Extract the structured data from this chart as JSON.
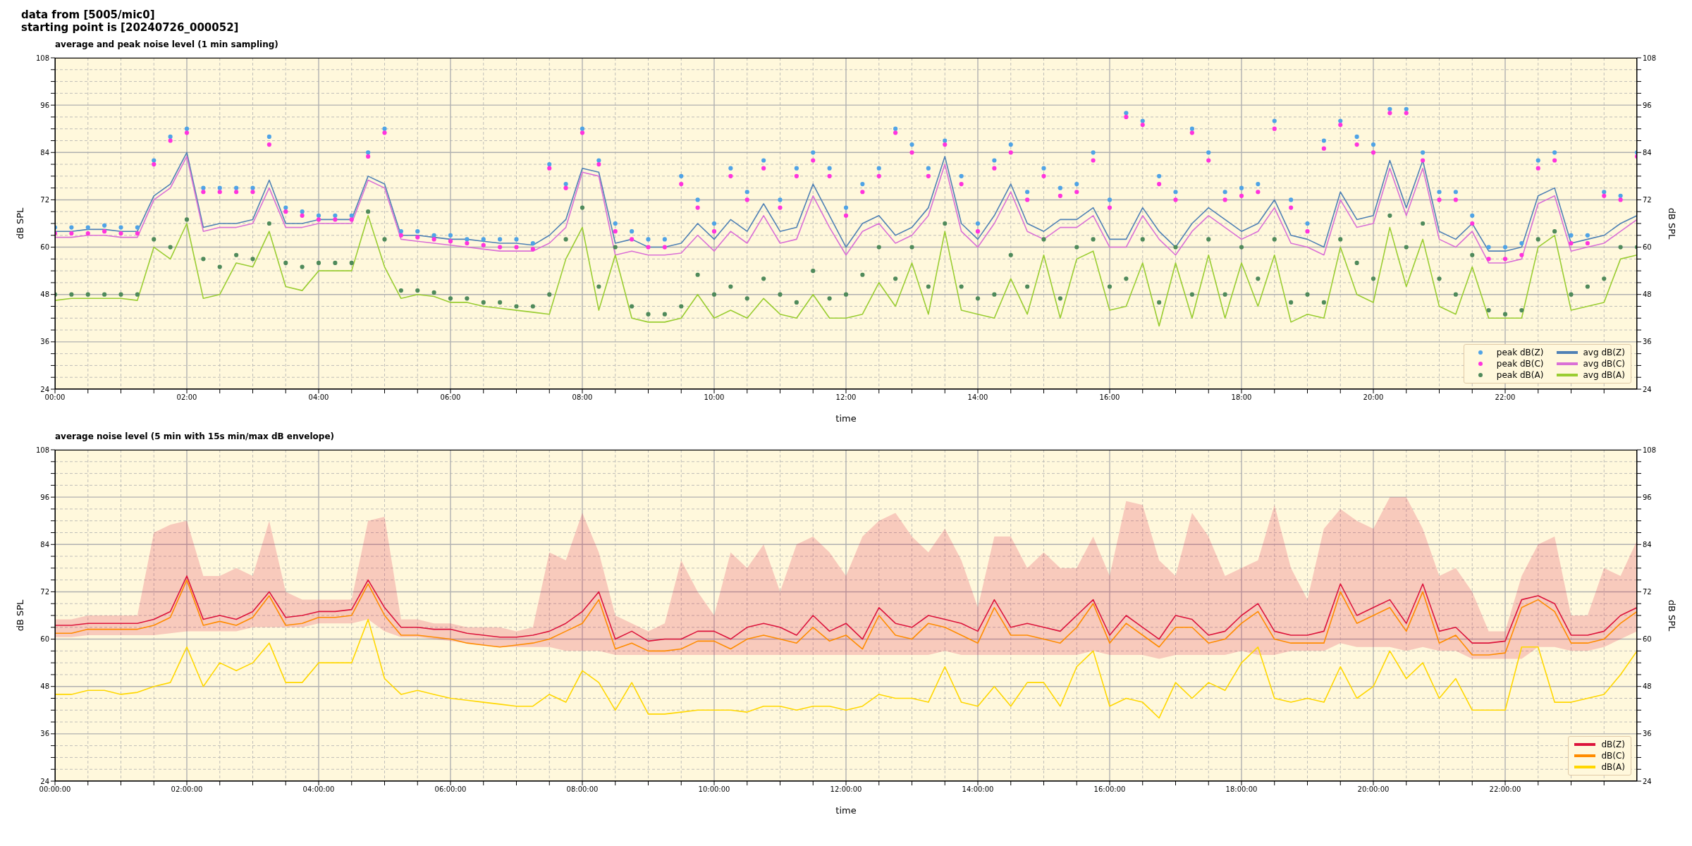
{
  "chart_data": [
    {
      "type": "line",
      "title": "average and peak noise level (1 min sampling)",
      "annotations": [
        "data from [5005/mic0]",
        "starting point is [20240726_000052]"
      ],
      "xlabel": "time",
      "ylabel": "dB SPL",
      "y2label": "dB SPL",
      "xlim": [
        0,
        24
      ],
      "ylim": [
        24,
        108
      ],
      "y2lim": [
        24,
        108
      ],
      "xticks": [
        {
          "value": 0,
          "label": "00:00"
        },
        {
          "value": 0.5,
          "label": null
        },
        {
          "value": 1,
          "label": null
        },
        {
          "value": 1.5,
          "label": null
        },
        {
          "value": 2,
          "label": "02:00"
        },
        {
          "value": 2.5,
          "label": null
        },
        {
          "value": 3,
          "label": null
        },
        {
          "value": 3.5,
          "label": null
        },
        {
          "value": 4,
          "label": "04:00"
        },
        {
          "value": 4.5,
          "label": null
        },
        {
          "value": 5,
          "label": null
        },
        {
          "value": 5.5,
          "label": null
        },
        {
          "value": 6,
          "label": "06:00"
        },
        {
          "value": 6.5,
          "label": null
        },
        {
          "value": 7,
          "label": null
        },
        {
          "value": 7.5,
          "label": null
        },
        {
          "value": 8,
          "label": "08:00"
        },
        {
          "value": 8.5,
          "label": null
        },
        {
          "value": 9,
          "label": null
        },
        {
          "value": 9.5,
          "label": null
        },
        {
          "value": 10,
          "label": "10:00"
        },
        {
          "value": 10.5,
          "label": null
        },
        {
          "value": 11,
          "label": null
        },
        {
          "value": 11.5,
          "label": null
        },
        {
          "value": 12,
          "label": "12:00"
        },
        {
          "value": 12.5,
          "label": null
        },
        {
          "value": 13,
          "label": null
        },
        {
          "value": 13.5,
          "label": null
        },
        {
          "value": 14,
          "label": "14:00"
        },
        {
          "value": 14.5,
          "label": null
        },
        {
          "value": 15,
          "label": null
        },
        {
          "value": 15.5,
          "label": null
        },
        {
          "value": 16,
          "label": "16:00"
        },
        {
          "value": 16.5,
          "label": null
        },
        {
          "value": 17,
          "label": null
        },
        {
          "value": 17.5,
          "label": null
        },
        {
          "value": 18,
          "label": "18:00"
        },
        {
          "value": 18.5,
          "label": null
        },
        {
          "value": 19,
          "label": null
        },
        {
          "value": 19.5,
          "label": null
        },
        {
          "value": 20,
          "label": "20:00"
        },
        {
          "value": 20.5,
          "label": null
        },
        {
          "value": 21,
          "label": null
        },
        {
          "value": 21.5,
          "label": null
        },
        {
          "value": 22,
          "label": "22:00"
        },
        {
          "value": 22.5,
          "label": null
        },
        {
          "value": 23,
          "label": null
        },
        {
          "value": 23.5,
          "label": null
        }
      ],
      "yticks": [
        24,
        {
          "value": 27,
          "label": null
        },
        {
          "value": 30,
          "label": null
        },
        {
          "value": 33,
          "label": null
        },
        36,
        {
          "value": 39,
          "label": null
        },
        {
          "value": 42,
          "label": null
        },
        {
          "value": 45,
          "label": null
        },
        48,
        {
          "value": 51,
          "label": null
        },
        {
          "value": 54,
          "label": null
        },
        {
          "value": 57,
          "label": null
        },
        60,
        {
          "value": 63,
          "label": null
        },
        {
          "value": 66,
          "label": null
        },
        {
          "value": 69,
          "label": null
        },
        72,
        {
          "value": 75,
          "label": null
        },
        {
          "value": 78,
          "label": null
        },
        {
          "value": 81,
          "label": null
        },
        84,
        {
          "value": 87,
          "label": null
        },
        {
          "value": 90,
          "label": null
        },
        {
          "value": 93,
          "label": null
        },
        96,
        {
          "value": 99,
          "label": null
        },
        {
          "value": 102,
          "label": null
        },
        {
          "value": 105,
          "label": null
        },
        108
      ],
      "y2ticks": [
        24,
        {
          "value": 27,
          "label": null
        },
        {
          "value": 30,
          "label": null
        },
        {
          "value": 33,
          "label": null
        },
        36,
        {
          "value": 39,
          "label": null
        },
        {
          "value": 42,
          "label": null
        },
        {
          "value": 45,
          "label": null
        },
        48,
        {
          "value": 51,
          "label": null
        },
        {
          "value": 54,
          "label": null
        },
        {
          "value": 57,
          "label": null
        },
        60,
        {
          "value": 63,
          "label": null
        },
        {
          "value": 66,
          "label": null
        },
        {
          "value": 69,
          "label": null
        },
        72,
        {
          "value": 75,
          "label": null
        },
        {
          "value": 78,
          "label": null
        },
        {
          "value": 81,
          "label": null
        },
        84,
        {
          "value": 87,
          "label": null
        },
        {
          "value": 90,
          "label": null
        },
        {
          "value": 93,
          "label": null
        },
        96,
        {
          "value": 99,
          "label": null
        },
        {
          "value": 102,
          "label": null
        },
        {
          "value": 105,
          "label": null
        },
        108
      ],
      "grid": true,
      "legend": "bottom right",
      "x": [
        0,
        0.25,
        0.5,
        0.75,
        1,
        1.25,
        1.5,
        1.75,
        2,
        2.25,
        2.5,
        2.75,
        3,
        3.25,
        3.5,
        3.75,
        4,
        4.25,
        4.5,
        4.75,
        5,
        5.25,
        5.5,
        5.75,
        6,
        6.25,
        6.5,
        6.75,
        7,
        7.25,
        7.5,
        7.75,
        8,
        8.25,
        8.5,
        8.75,
        9,
        9.25,
        9.5,
        9.75,
        10,
        10.25,
        10.5,
        10.75,
        11,
        11.25,
        11.5,
        11.75,
        12,
        12.25,
        12.5,
        12.75,
        13,
        13.25,
        13.5,
        13.75,
        14,
        14.25,
        14.5,
        14.75,
        15,
        15.25,
        15.5,
        15.75,
        16,
        16.25,
        16.5,
        16.75,
        17,
        17.25,
        17.5,
        17.75,
        18,
        18.25,
        18.5,
        18.75,
        19,
        19.25,
        19.5,
        19.75,
        20,
        20.25,
        20.5,
        20.75,
        21,
        21.25,
        21.5,
        21.75,
        22,
        22.25,
        22.5,
        22.75,
        23,
        23.25,
        23.5,
        23.75,
        24
      ],
      "series": [
        {
          "name": "peak dB(Z)",
          "type": "scatter",
          "marker": "circle",
          "color": "#4fa3e6",
          "values": [
            65,
            65,
            65,
            65.5,
            65,
            65,
            82,
            88,
            90,
            75,
            75,
            75,
            75,
            88,
            70,
            69,
            68,
            68,
            68,
            84,
            90,
            64,
            64,
            63,
            63,
            62,
            62,
            62,
            62,
            61,
            81,
            76,
            90,
            82,
            66,
            64,
            62,
            62,
            78,
            72,
            66,
            80,
            74,
            82,
            72,
            80,
            84,
            80,
            70,
            76,
            80,
            90,
            86,
            80,
            87,
            78,
            66,
            82,
            86,
            74,
            80,
            75,
            76,
            84,
            72,
            94,
            92,
            78,
            74,
            90,
            84,
            74,
            75,
            76,
            92,
            72,
            66,
            87,
            92,
            88,
            86,
            95,
            95,
            84,
            74,
            74,
            68,
            60,
            60,
            61,
            82,
            84,
            63,
            63,
            74,
            73,
            84
          ]
        },
        {
          "name": "peak dB(C)",
          "type": "scatter",
          "marker": "circle",
          "color": "#ff33dd",
          "values": [
            63.5,
            63.5,
            63.5,
            64,
            63.5,
            63.5,
            81,
            87,
            89,
            74,
            74,
            74,
            74,
            86,
            69,
            68,
            67,
            67,
            67,
            83,
            89,
            63,
            62.5,
            62,
            61.5,
            61,
            60.5,
            60,
            60,
            59.5,
            80,
            75,
            89,
            81,
            64,
            62,
            60,
            60,
            76,
            70,
            64,
            78,
            72,
            80,
            70,
            78,
            82,
            78,
            68,
            74,
            78,
            89,
            84,
            78,
            86,
            76,
            64,
            80,
            84,
            72,
            78,
            73,
            74,
            82,
            70,
            93,
            91,
            76,
            72,
            89,
            82,
            72,
            73,
            74,
            90,
            70,
            64,
            85,
            91,
            86,
            84,
            94,
            94,
            82,
            72,
            72,
            66,
            57,
            57,
            58,
            80,
            82,
            61,
            61,
            73,
            72,
            83
          ]
        },
        {
          "name": "peak dB(A)",
          "type": "scatter",
          "marker": "circle",
          "color": "#4f8a5b",
          "values": [
            48,
            48,
            48,
            48,
            48,
            48,
            62,
            60,
            67,
            57,
            55,
            58,
            57,
            66,
            56,
            55,
            56,
            56,
            56,
            69,
            62,
            49,
            49,
            48.5,
            47,
            47,
            46,
            46,
            45,
            45,
            48,
            62,
            70,
            50,
            60,
            45,
            43,
            43,
            45,
            53,
            48,
            50,
            47,
            52,
            48,
            46,
            54,
            47,
            48,
            53,
            60,
            52,
            60,
            50,
            66,
            50,
            47,
            48,
            58,
            50,
            62,
            47,
            60,
            62,
            50,
            52,
            62,
            46,
            60,
            48,
            62,
            48,
            60,
            52,
            62,
            46,
            48,
            46,
            62,
            56,
            52,
            68,
            60,
            66,
            52,
            48,
            58,
            44,
            43,
            44,
            62,
            64,
            48,
            50,
            52,
            60,
            60
          ]
        },
        {
          "name": "avg dB(Z)",
          "color": "#4f81b5",
          "values": [
            64,
            64,
            64.5,
            64.5,
            64,
            64,
            73,
            76,
            84,
            65,
            66,
            66,
            67,
            77,
            66,
            66,
            67,
            67,
            67,
            78,
            76,
            63,
            63,
            62.5,
            62,
            62,
            61.5,
            61,
            61,
            60.5,
            63,
            67,
            80,
            79,
            61,
            62,
            60,
            60,
            61,
            66,
            62,
            67,
            64,
            71,
            64,
            65,
            76,
            68,
            60,
            66,
            68,
            63,
            65,
            70,
            83,
            66,
            62,
            68,
            76,
            66,
            64,
            67,
            67,
            70,
            62,
            62,
            70,
            64,
            60,
            66,
            70,
            67,
            64,
            66,
            72,
            63,
            62,
            60,
            74,
            67,
            68,
            82,
            70,
            82,
            64,
            62,
            66,
            59,
            59,
            60,
            73,
            75,
            61,
            62,
            63,
            66,
            68
          ]
        },
        {
          "name": "avg dB(C)",
          "color": "#da70d6",
          "values": [
            62.5,
            62.5,
            63,
            63,
            62.5,
            62.5,
            72,
            75,
            83,
            64,
            65,
            65,
            66,
            75,
            65,
            65,
            66,
            66,
            66,
            77,
            75,
            62,
            61.5,
            61,
            60.5,
            60,
            59.5,
            59,
            59,
            59,
            61,
            65,
            79,
            78,
            58,
            59,
            58,
            58,
            58.5,
            63,
            59,
            64,
            61,
            68,
            61,
            62,
            73,
            65,
            58,
            64,
            66,
            61,
            63,
            68,
            81,
            64,
            60,
            66,
            74,
            64,
            62,
            65,
            65,
            68,
            60,
            60,
            68,
            62,
            58,
            64,
            68,
            65,
            62,
            64,
            70,
            61,
            60,
            58,
            72,
            65,
            66,
            80,
            68,
            80,
            62,
            60,
            64,
            56,
            56,
            57,
            71,
            73,
            59,
            60,
            61,
            64,
            67
          ]
        },
        {
          "name": "avg dB(A)",
          "color": "#9acd32",
          "values": [
            46.5,
            47,
            47,
            47,
            47,
            46.5,
            60,
            57,
            66,
            47,
            48,
            56,
            55,
            64,
            50,
            49,
            54,
            54,
            54,
            68,
            55,
            47,
            48,
            47.5,
            46,
            46,
            45,
            44.5,
            44,
            43.5,
            43,
            57,
            65,
            44,
            58,
            42,
            41,
            41,
            42,
            48,
            42,
            44,
            42,
            47,
            43,
            42,
            48,
            42,
            42,
            43,
            51,
            45,
            56,
            43,
            64,
            44,
            43,
            42,
            52,
            43,
            58,
            42,
            57,
            59,
            44,
            45,
            56,
            40,
            56,
            42,
            58,
            42,
            56,
            45,
            58,
            41,
            43,
            42,
            60,
            48,
            46,
            65,
            50,
            62,
            45,
            43,
            55,
            42,
            42,
            42,
            60,
            63,
            44,
            45,
            46,
            57,
            58
          ]
        }
      ]
    },
    {
      "type": "line",
      "title": "average noise level (5 min with 15s min/max dB envelope)",
      "xlabel": "time",
      "ylabel": "dB SPL",
      "y2label": "dB SPL",
      "xlim": [
        0,
        24
      ],
      "ylim": [
        24,
        108
      ],
      "y2lim": [
        24,
        108
      ],
      "xticks": [
        {
          "value": 0,
          "label": "00:00:00"
        },
        {
          "value": 0.5,
          "label": null
        },
        {
          "value": 1,
          "label": null
        },
        {
          "value": 1.5,
          "label": null
        },
        {
          "value": 2,
          "label": "02:00:00"
        },
        {
          "value": 2.5,
          "label": null
        },
        {
          "value": 3,
          "label": null
        },
        {
          "value": 3.5,
          "label": null
        },
        {
          "value": 4,
          "label": "04:00:00"
        },
        {
          "value": 4.5,
          "label": null
        },
        {
          "value": 5,
          "label": null
        },
        {
          "value": 5.5,
          "label": null
        },
        {
          "value": 6,
          "label": "06:00:00"
        },
        {
          "value": 6.5,
          "label": null
        },
        {
          "value": 7,
          "label": null
        },
        {
          "value": 7.5,
          "label": null
        },
        {
          "value": 8,
          "label": "08:00:00"
        },
        {
          "value": 8.5,
          "label": null
        },
        {
          "value": 9,
          "label": null
        },
        {
          "value": 9.5,
          "label": null
        },
        {
          "value": 10,
          "label": "10:00:00"
        },
        {
          "value": 10.5,
          "label": null
        },
        {
          "value": 11,
          "label": null
        },
        {
          "value": 11.5,
          "label": null
        },
        {
          "value": 12,
          "label": "12:00:00"
        },
        {
          "value": 12.5,
          "label": null
        },
        {
          "value": 13,
          "label": null
        },
        {
          "value": 13.5,
          "label": null
        },
        {
          "value": 14,
          "label": "14:00:00"
        },
        {
          "value": 14.5,
          "label": null
        },
        {
          "value": 15,
          "label": null
        },
        {
          "value": 15.5,
          "label": null
        },
        {
          "value": 16,
          "label": "16:00:00"
        },
        {
          "value": 16.5,
          "label": null
        },
        {
          "value": 17,
          "label": null
        },
        {
          "value": 17.5,
          "label": null
        },
        {
          "value": 18,
          "label": "18:00:00"
        },
        {
          "value": 18.5,
          "label": null
        },
        {
          "value": 19,
          "label": null
        },
        {
          "value": 19.5,
          "label": null
        },
        {
          "value": 20,
          "label": "20:00:00"
        },
        {
          "value": 20.5,
          "label": null
        },
        {
          "value": 21,
          "label": null
        },
        {
          "value": 21.5,
          "label": null
        },
        {
          "value": 22,
          "label": "22:00:00"
        },
        {
          "value": 22.5,
          "label": null
        },
        {
          "value": 23,
          "label": null
        },
        {
          "value": 23.5,
          "label": null
        }
      ],
      "yticks": [
        24,
        {
          "value": 27,
          "label": null
        },
        {
          "value": 30,
          "label": null
        },
        {
          "value": 33,
          "label": null
        },
        36,
        {
          "value": 39,
          "label": null
        },
        {
          "value": 42,
          "label": null
        },
        {
          "value": 45,
          "label": null
        },
        48,
        {
          "value": 51,
          "label": null
        },
        {
          "value": 54,
          "label": null
        },
        {
          "value": 57,
          "label": null
        },
        60,
        {
          "value": 63,
          "label": null
        },
        {
          "value": 66,
          "label": null
        },
        {
          "value": 69,
          "label": null
        },
        72,
        {
          "value": 75,
          "label": null
        },
        {
          "value": 78,
          "label": null
        },
        {
          "value": 81,
          "label": null
        },
        84,
        {
          "value": 87,
          "label": null
        },
        {
          "value": 90,
          "label": null
        },
        {
          "value": 93,
          "label": null
        },
        96,
        {
          "value": 99,
          "label": null
        },
        {
          "value": 102,
          "label": null
        },
        {
          "value": 105,
          "label": null
        },
        108
      ],
      "y2ticks": [
        24,
        {
          "value": 27,
          "label": null
        },
        {
          "value": 30,
          "label": null
        },
        {
          "value": 33,
          "label": null
        },
        36,
        {
          "value": 39,
          "label": null
        },
        {
          "value": 42,
          "label": null
        },
        {
          "value": 45,
          "label": null
        },
        48,
        {
          "value": 51,
          "label": null
        },
        {
          "value": 54,
          "label": null
        },
        {
          "value": 57,
          "label": null
        },
        60,
        {
          "value": 63,
          "label": null
        },
        {
          "value": 66,
          "label": null
        },
        {
          "value": 69,
          "label": null
        },
        72,
        {
          "value": 75,
          "label": null
        },
        {
          "value": 78,
          "label": null
        },
        {
          "value": 81,
          "label": null
        },
        84,
        {
          "value": 87,
          "label": null
        },
        {
          "value": 90,
          "label": null
        },
        {
          "value": 93,
          "label": null
        },
        96,
        {
          "value": 99,
          "label": null
        },
        {
          "value": 102,
          "label": null
        },
        {
          "value": 105,
          "label": null
        },
        108
      ],
      "grid": true,
      "legend": "bottom right",
      "x": [
        0,
        0.25,
        0.5,
        0.75,
        1,
        1.25,
        1.5,
        1.75,
        2,
        2.25,
        2.5,
        2.75,
        3,
        3.25,
        3.5,
        3.75,
        4,
        4.25,
        4.5,
        4.75,
        5,
        5.25,
        5.5,
        5.75,
        6,
        6.25,
        6.5,
        6.75,
        7,
        7.25,
        7.5,
        7.75,
        8,
        8.25,
        8.5,
        8.75,
        9,
        9.25,
        9.5,
        9.75,
        10,
        10.25,
        10.5,
        10.75,
        11,
        11.25,
        11.5,
        11.75,
        12,
        12.25,
        12.5,
        12.75,
        13,
        13.25,
        13.5,
        13.75,
        14,
        14.25,
        14.5,
        14.75,
        15,
        15.25,
        15.5,
        15.75,
        16,
        16.25,
        16.5,
        16.75,
        17,
        17.25,
        17.5,
        17.75,
        18,
        18.25,
        18.5,
        18.75,
        19,
        19.25,
        19.5,
        19.75,
        20,
        20.25,
        20.5,
        20.75,
        21,
        21.25,
        21.5,
        21.75,
        22,
        22.25,
        22.5,
        22.75,
        23,
        23.25,
        23.5,
        23.75,
        24
      ],
      "series": [
        {
          "name": "dB(Z)",
          "color": "#dc143c",
          "values": [
            63.5,
            63.5,
            64,
            64,
            64,
            64,
            65,
            67,
            76,
            65,
            66,
            65,
            67,
            72,
            65.5,
            66,
            67,
            67,
            67.5,
            75,
            68,
            63,
            63,
            62.5,
            62.5,
            61.5,
            61,
            60.5,
            60.5,
            61,
            62,
            64,
            67,
            72,
            60,
            62,
            59.5,
            60,
            60,
            62,
            62,
            60,
            63,
            64,
            63,
            61,
            66,
            62,
            64,
            60,
            68,
            64,
            63,
            66,
            65,
            64,
            62,
            70,
            63,
            64,
            63,
            62,
            66,
            70,
            61,
            66,
            63,
            60,
            66,
            65,
            61,
            62,
            66,
            69,
            62,
            61,
            61,
            62,
            74,
            66,
            68,
            70,
            64,
            74,
            62,
            63,
            59,
            59,
            59.5,
            70,
            71,
            69,
            61,
            61,
            62,
            66,
            68
          ],
          "lower": [
            60.5,
            60.5,
            61,
            61,
            61,
            61,
            61,
            61.5,
            62,
            62,
            62,
            62,
            63,
            63,
            63,
            63,
            64,
            64,
            64,
            65,
            62,
            60.5,
            60.5,
            60,
            59.5,
            59,
            58.5,
            58,
            58,
            58,
            58,
            57,
            57,
            57,
            56,
            56,
            56,
            56,
            56,
            56,
            56,
            56,
            56,
            56,
            56,
            56,
            56,
            56,
            56,
            56,
            56,
            56,
            56,
            56,
            57,
            56,
            56,
            56,
            56,
            56,
            56,
            56,
            56,
            57,
            56,
            56,
            56,
            55,
            56,
            56,
            56,
            56,
            57,
            56,
            56,
            57,
            57,
            57,
            59,
            58,
            58,
            58,
            57,
            58,
            57,
            57,
            55,
            55,
            55,
            55,
            58,
            58,
            57,
            57,
            58,
            60,
            62
          ],
          "upper": [
            65,
            65,
            66,
            66,
            66,
            66,
            87,
            89,
            90,
            76,
            76,
            78,
            76,
            90,
            72,
            70,
            70,
            70,
            70,
            90,
            91,
            65,
            65,
            64,
            64,
            63,
            63,
            63,
            62,
            63,
            82,
            80,
            92,
            82,
            66,
            64,
            62,
            64,
            80,
            72,
            66,
            82,
            78,
            84,
            72,
            84,
            86,
            82,
            76,
            86,
            90,
            92,
            86,
            82,
            88,
            80,
            68,
            86,
            86,
            78,
            82,
            78,
            78,
            86,
            76,
            95,
            94,
            80,
            76,
            92,
            86,
            76,
            78,
            80,
            94,
            78,
            70,
            88,
            93,
            90,
            88,
            96,
            96,
            88,
            76,
            78,
            72,
            62,
            62,
            76,
            84,
            86,
            66,
            66,
            78,
            76,
            85
          ]
        },
        {
          "name": "dB(C)",
          "color": "#ff8c00",
          "values": [
            61.5,
            61.5,
            62.5,
            62.5,
            62.5,
            62.5,
            63.5,
            65.5,
            75,
            63.5,
            64.5,
            63.5,
            65.5,
            71,
            63.5,
            64,
            65.5,
            65.5,
            66,
            74,
            66,
            61,
            61,
            60.5,
            60,
            59,
            58.5,
            58,
            58.5,
            59,
            60,
            62,
            64,
            70,
            57.5,
            59,
            57,
            57,
            57.5,
            59.5,
            59.5,
            57.5,
            60,
            61,
            60,
            59,
            63,
            59.5,
            61,
            57.5,
            66,
            61,
            60,
            64,
            63,
            61,
            59,
            68,
            61,
            61,
            60,
            59,
            63,
            69,
            59,
            64,
            61,
            58,
            63,
            63,
            59,
            60,
            64,
            67,
            60,
            59,
            59,
            59,
            72,
            64,
            66,
            68,
            62,
            72,
            59,
            61,
            56,
            56,
            56.5,
            68,
            70,
            67,
            59,
            59,
            60,
            64,
            67
          ]
        },
        {
          "name": "dB(A)",
          "color": "#ffd700",
          "values": [
            46,
            46,
            47,
            47,
            46,
            46.5,
            48,
            49,
            58,
            48,
            54,
            52,
            54,
            59,
            49,
            49,
            54,
            54,
            54,
            65,
            50,
            46,
            47,
            46,
            45,
            44.5,
            44,
            43.5,
            43,
            43,
            46,
            44,
            52,
            49,
            42,
            49,
            41,
            41,
            41.5,
            42,
            42,
            42,
            41.5,
            43,
            43,
            42,
            43,
            43,
            42,
            43,
            46,
            45,
            45,
            44,
            53,
            44,
            43,
            48,
            43,
            49,
            49,
            43,
            53,
            57,
            43,
            45,
            44,
            40,
            49,
            45,
            49,
            47,
            54,
            58,
            45,
            44,
            45,
            44,
            53,
            45,
            48,
            57,
            50,
            54,
            45,
            50,
            42,
            42,
            42,
            58,
            58,
            44,
            44,
            45,
            46,
            51,
            57
          ]
        }
      ]
    }
  ]
}
